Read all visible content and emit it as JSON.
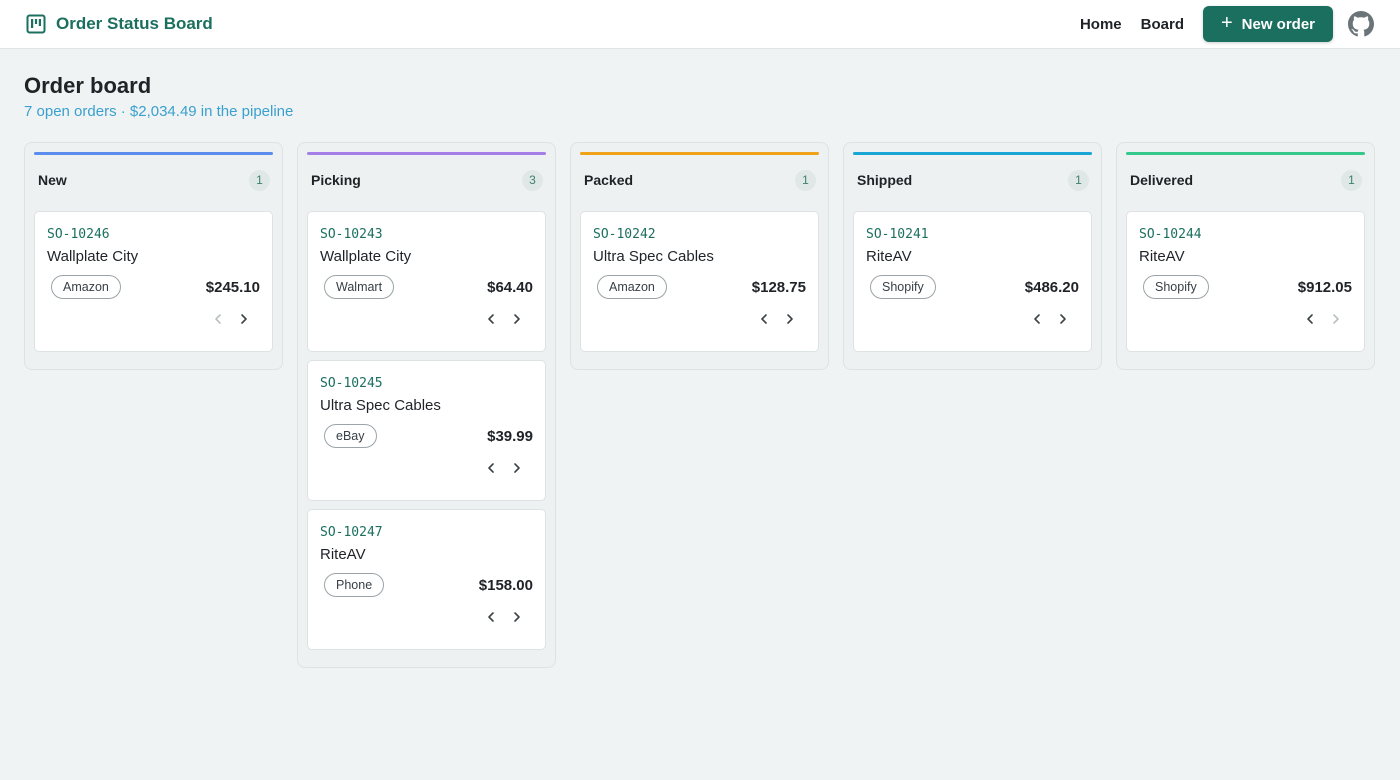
{
  "header": {
    "brand": "Order Status Board",
    "nav": [
      "Home",
      "Board"
    ],
    "new_order_label": "New order",
    "brand_color": "#1b6f5f"
  },
  "page": {
    "title": "Order board",
    "subtitle": "7 open orders · $2,034.49 in the pipeline"
  },
  "columns": [
    {
      "title": "New",
      "count": "1",
      "color": "#5b8def",
      "cards": [
        {
          "id": "SO-10246",
          "customer": "Wallplate City",
          "channel": "Amazon",
          "amount": "$245.10",
          "prev_enabled": false,
          "next_enabled": true
        }
      ]
    },
    {
      "title": "Picking",
      "count": "3",
      "color": "#a57fe8",
      "cards": [
        {
          "id": "SO-10243",
          "customer": "Wallplate City",
          "channel": "Walmart",
          "amount": "$64.40",
          "prev_enabled": true,
          "next_enabled": true
        },
        {
          "id": "SO-10245",
          "customer": "Ultra Spec Cables",
          "channel": "eBay",
          "amount": "$39.99",
          "prev_enabled": true,
          "next_enabled": true
        },
        {
          "id": "SO-10247",
          "customer": "RiteAV",
          "channel": "Phone",
          "amount": "$158.00",
          "prev_enabled": true,
          "next_enabled": true
        }
      ]
    },
    {
      "title": "Packed",
      "count": "1",
      "color": "#efa21a",
      "cards": [
        {
          "id": "SO-10242",
          "customer": "Ultra Spec Cables",
          "channel": "Amazon",
          "amount": "$128.75",
          "prev_enabled": true,
          "next_enabled": true
        }
      ]
    },
    {
      "title": "Shipped",
      "count": "1",
      "color": "#1aa6d4",
      "cards": [
        {
          "id": "SO-10241",
          "customer": "RiteAV",
          "channel": "Shopify",
          "amount": "$486.20",
          "prev_enabled": true,
          "next_enabled": true
        }
      ]
    },
    {
      "title": "Delivered",
      "count": "1",
      "color": "#34c98a",
      "cards": [
        {
          "id": "SO-10244",
          "customer": "RiteAV",
          "channel": "Shopify",
          "amount": "$912.05",
          "prev_enabled": true,
          "next_enabled": false
        }
      ]
    }
  ]
}
